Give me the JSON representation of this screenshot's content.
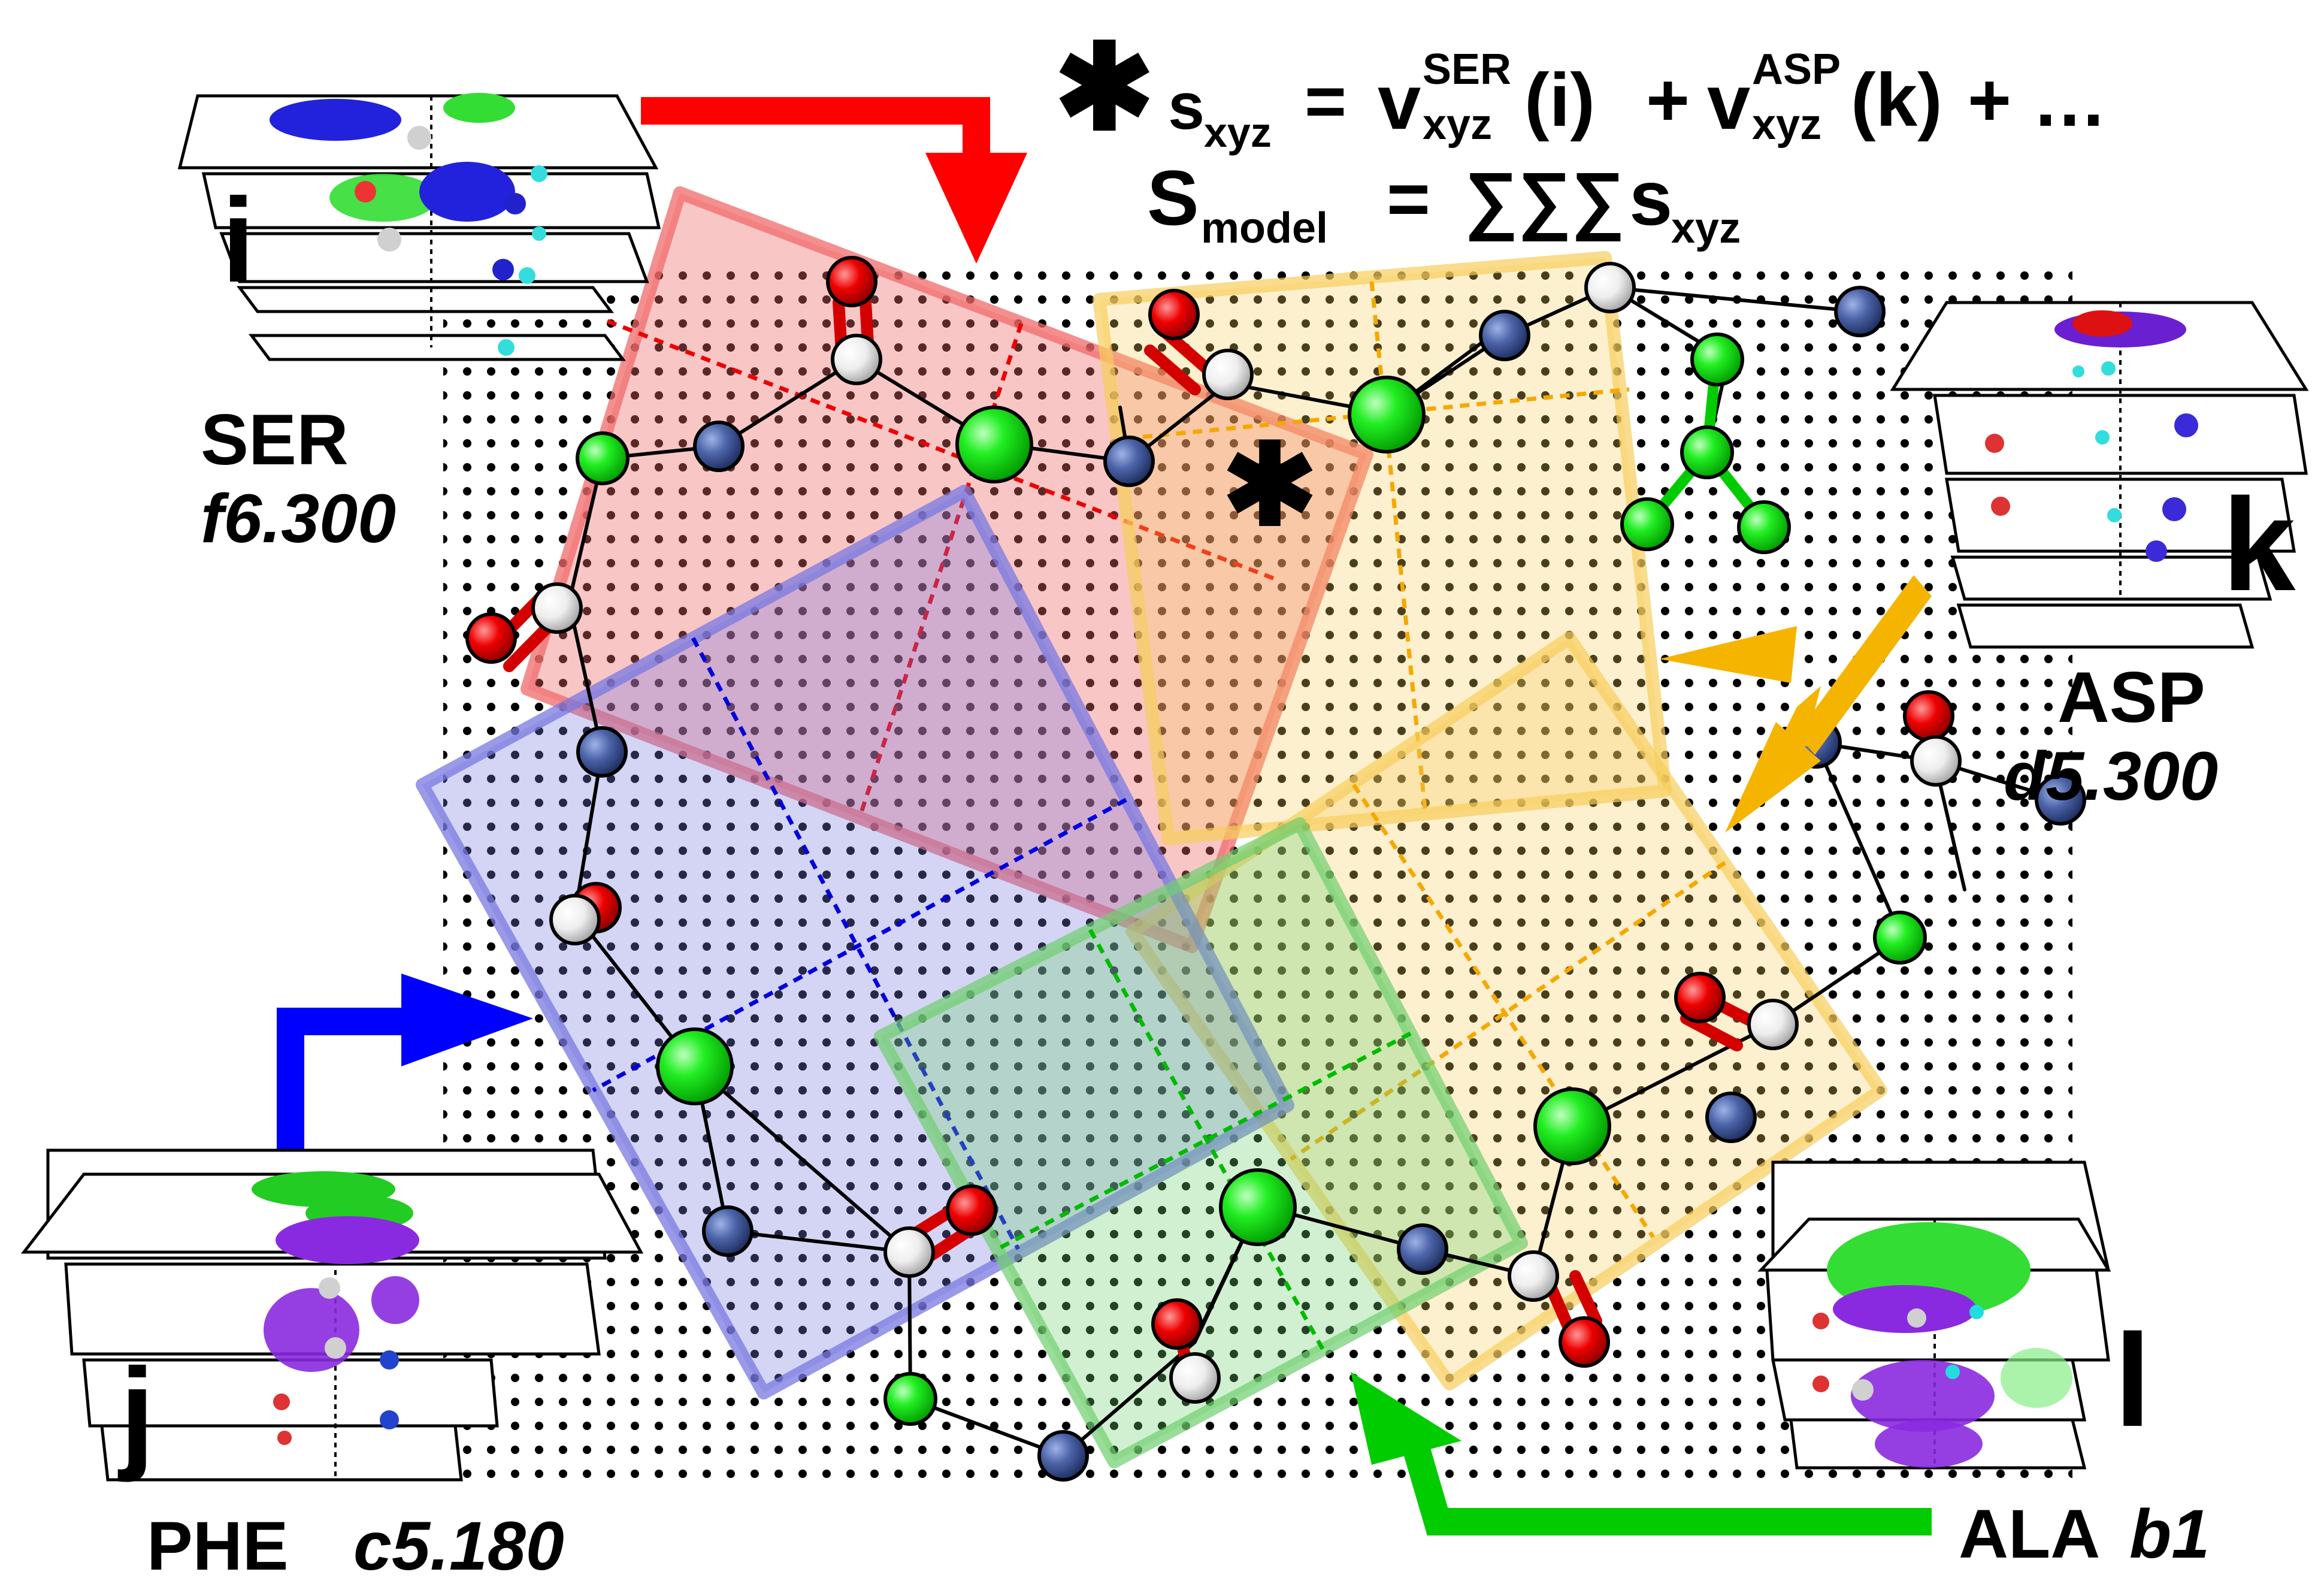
{
  "formula": {
    "line1": {
      "star": "✱",
      "s": "s",
      "s_sub": "xyz",
      "eq": "=",
      "v1": "v",
      "v1_sup": "SER",
      "v1_sub": "xyz",
      "v1_arg": "(i)",
      "plus1": "+",
      "v2": "v",
      "v2_sup": "ASP",
      "v2_sub": "xyz",
      "v2_arg": "(k)",
      "tail": "+ …"
    },
    "line2": {
      "S": "S",
      "S_sub": "model",
      "eq": "=",
      "sums": "∑∑∑",
      "s": "s",
      "s_sub": "xyz"
    }
  },
  "grid_star": "✱",
  "residues": [
    {
      "id": "i",
      "name": "SER",
      "rotamer": "f6.300",
      "box_color": "#f06a6a",
      "arrow_color": "#ff0000"
    },
    {
      "id": "j",
      "name": "PHE",
      "rotamer": "c5.180",
      "box_color": "#7878e0",
      "arrow_color": "#0000ff"
    },
    {
      "id": "k",
      "name": "ASP",
      "rotamer": "d5.300",
      "box_color": "#f7cd5c",
      "arrow_color": "#f5b400"
    },
    {
      "id": "l",
      "name": "ALA",
      "rotamer": "b1",
      "box_color": "#6fcf6f",
      "arrow_color": "#00cc00"
    }
  ],
  "atom_colors": {
    "carbon": "#00ee00",
    "nitrogen": "#445a99",
    "oxygen": "#ee0000",
    "hydrogen": "#eeeeee"
  }
}
